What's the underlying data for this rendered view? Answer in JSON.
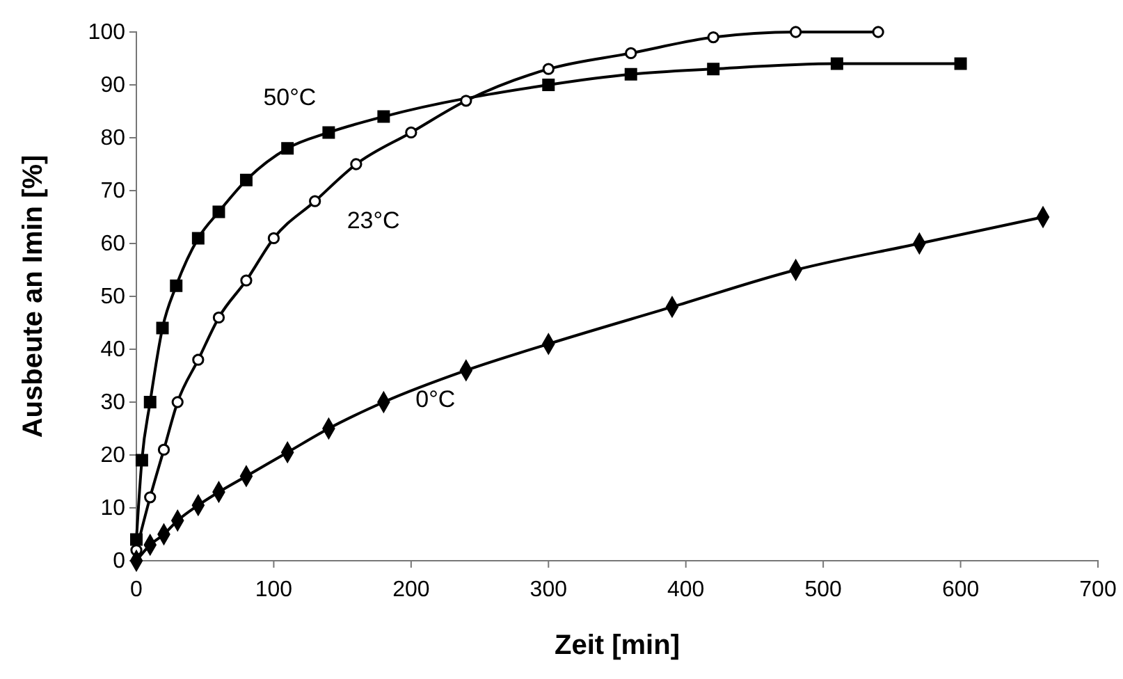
{
  "chart_data": {
    "type": "line",
    "xlabel": "Zeit [min]",
    "ylabel": "Ausbeute an Imin [%]",
    "xlim": [
      0,
      700
    ],
    "xticks": [
      0,
      100,
      200,
      300,
      400,
      500,
      600,
      700
    ],
    "ylim": [
      0,
      100
    ],
    "yticks": [
      0,
      10,
      20,
      30,
      40,
      50,
      60,
      70,
      80,
      90,
      100
    ],
    "grid": false,
    "legend": false,
    "line_style": "solid",
    "series": [
      {
        "name": "50°C",
        "color": "#000000",
        "marker": "square",
        "x": [
          0,
          4,
          10,
          19,
          29,
          45,
          60,
          80,
          110,
          140,
          180,
          240,
          300,
          360,
          420,
          510,
          600
        ],
        "values": [
          4,
          19,
          30,
          44,
          52,
          61,
          66,
          72,
          78,
          81,
          84,
          null,
          90,
          92,
          93,
          94,
          94
        ]
      },
      {
        "name": "23°C",
        "color": "#000000",
        "marker": "circle",
        "x": [
          0,
          10,
          20,
          30,
          45,
          60,
          80,
          100,
          130,
          160,
          200,
          240,
          300,
          360,
          420,
          480,
          540
        ],
        "values": [
          2,
          12,
          21,
          30,
          38,
          46,
          53,
          61,
          68,
          75,
          81,
          87,
          93,
          96,
          99,
          100,
          100
        ]
      },
      {
        "name": "0°C",
        "color": "#000000",
        "marker": "diamond",
        "x": [
          0,
          10,
          20,
          30,
          45,
          60,
          80,
          110,
          140,
          180,
          240,
          300,
          390,
          480,
          570,
          660
        ],
        "values": [
          0,
          3,
          5,
          7.6,
          10.5,
          13,
          16,
          20.5,
          25,
          30,
          36,
          41,
          48,
          55,
          60,
          65
        ]
      }
    ]
  }
}
